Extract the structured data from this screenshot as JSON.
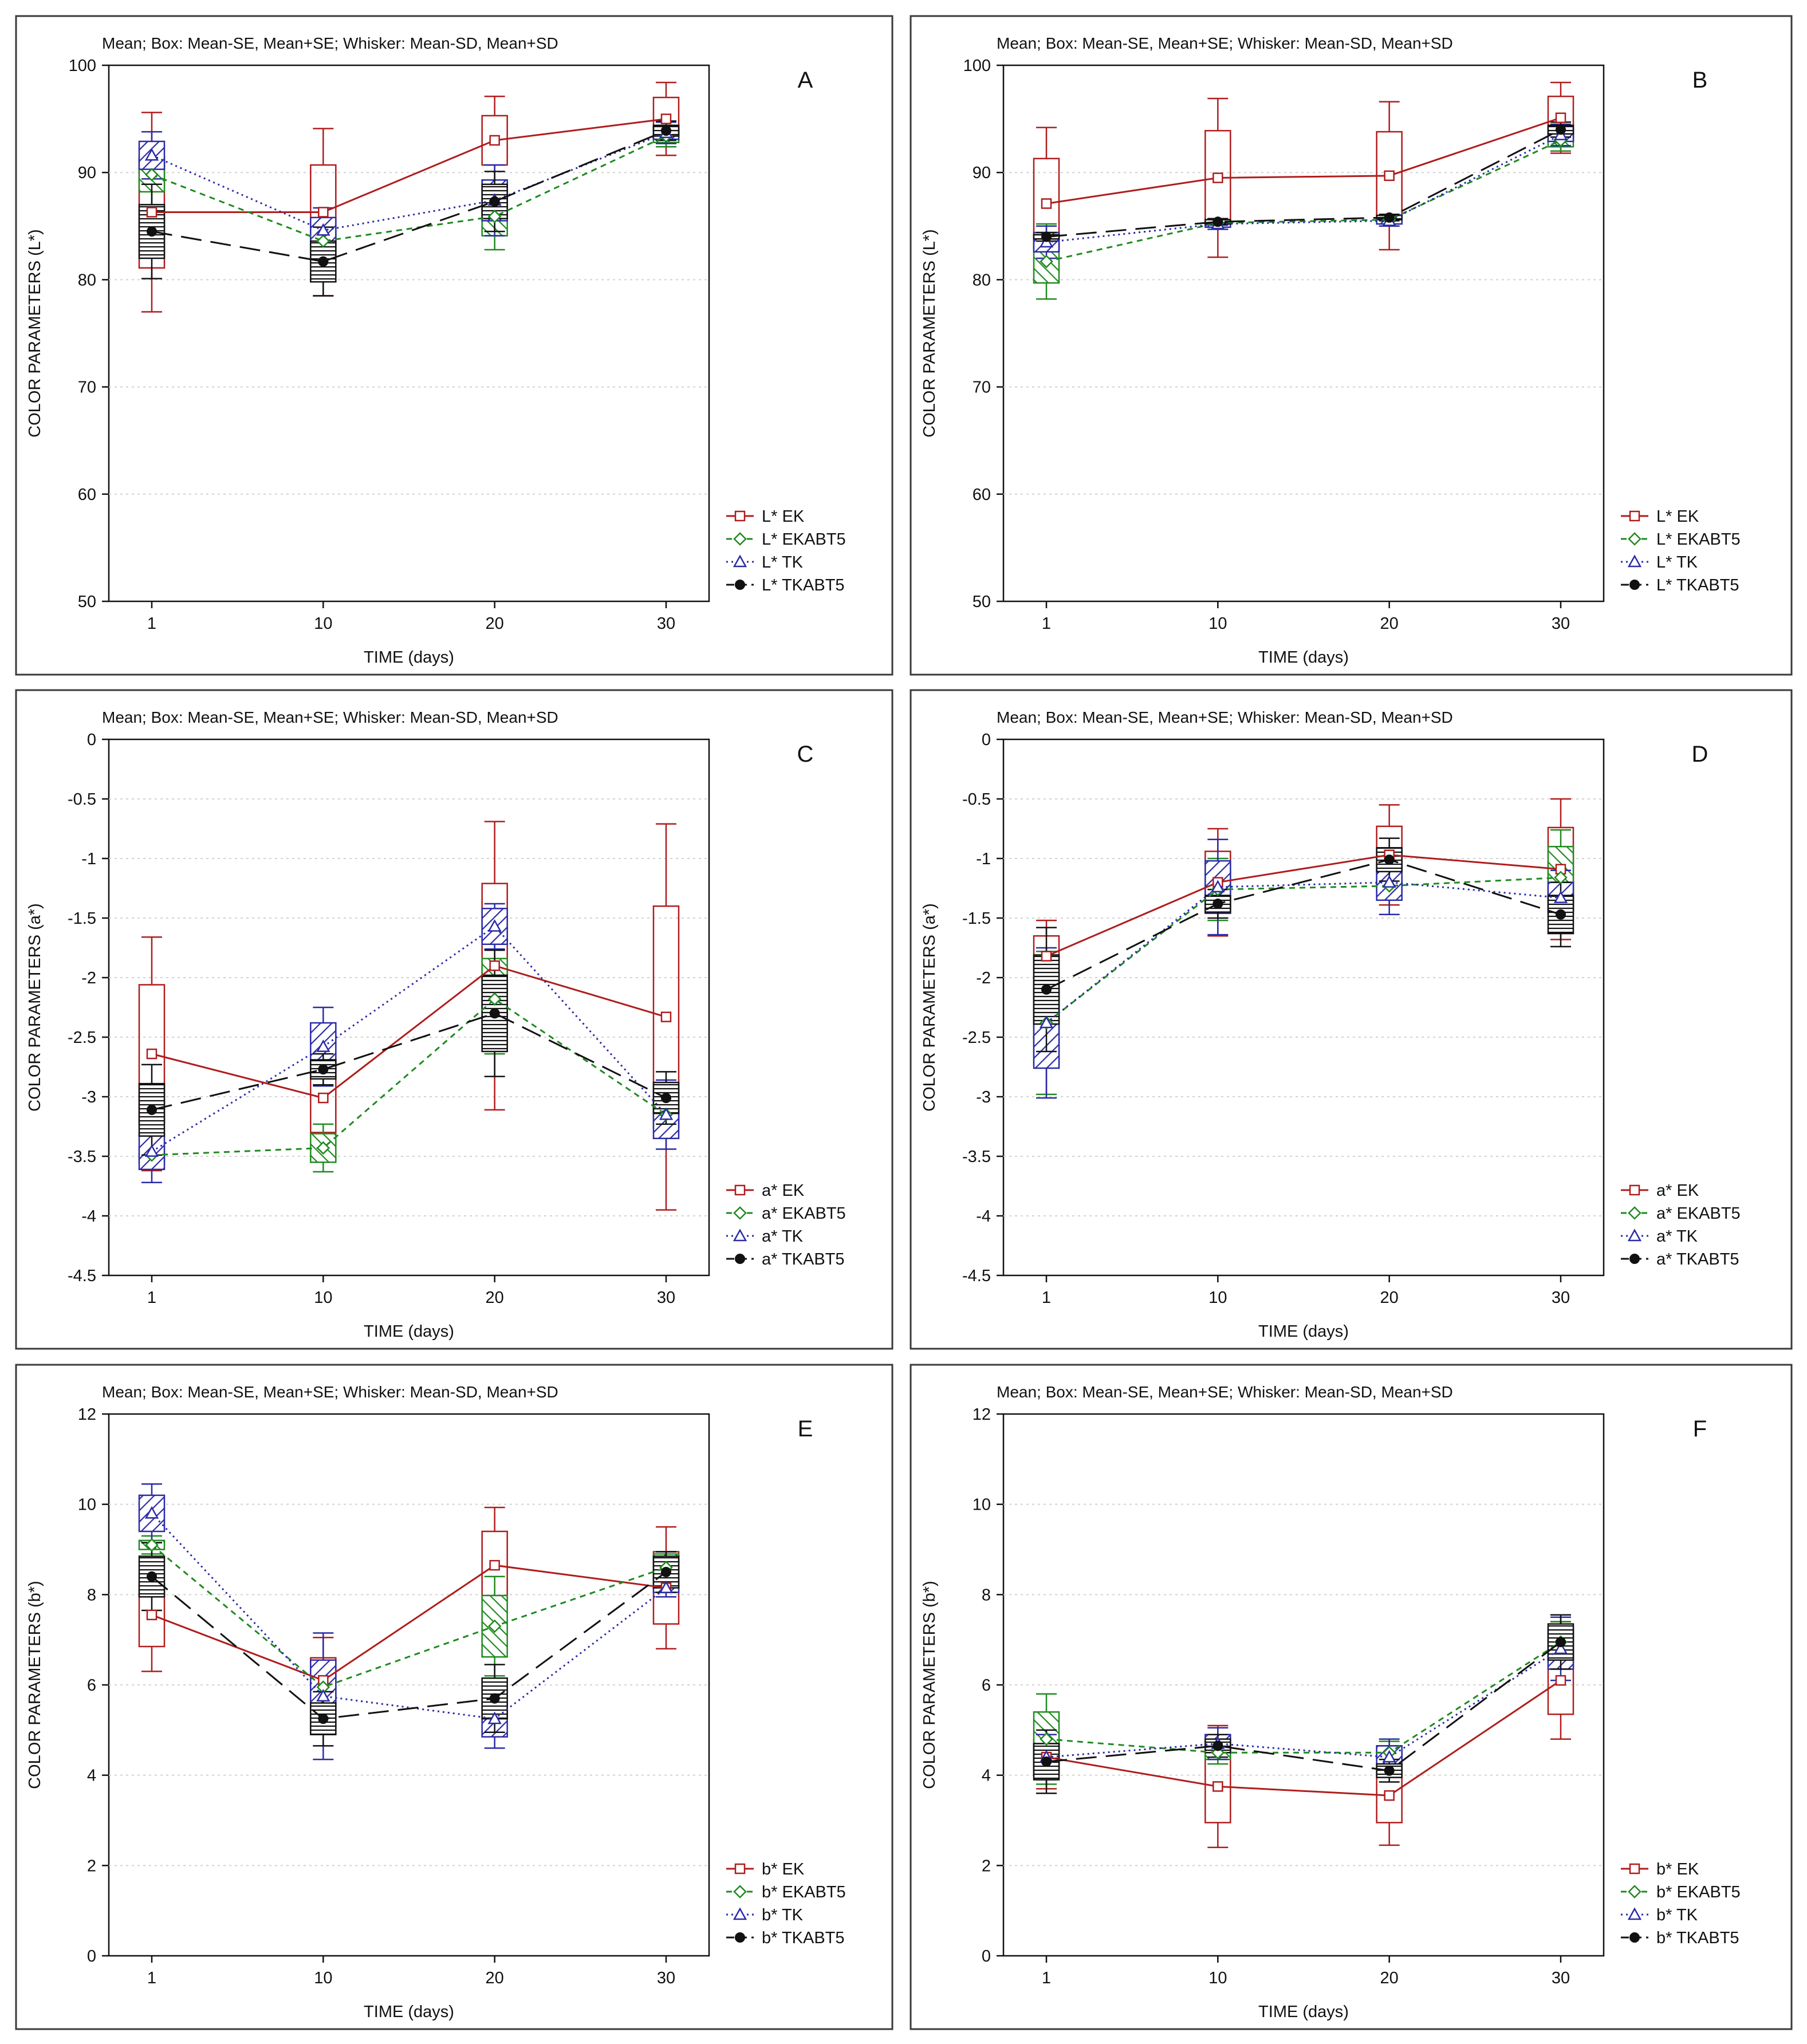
{
  "header": "Mean;  Box: Mean-SE, Mean+SE;  Whisker: Mean-SD, Mean+SD",
  "xlabel": "TIME (days)",
  "styles": {
    "EK": {
      "color": "#b01c1c",
      "dash": "",
      "marker": "square",
      "fill": "none"
    },
    "EKABT5": {
      "color": "#1f8a1f",
      "dash": "10 8",
      "marker": "diamond",
      "fill": "hatch-diag"
    },
    "TK": {
      "color": "#2a2aa8",
      "dash": "3 6",
      "marker": "triangle",
      "fill": "hatch-anti"
    },
    "TKABT5": {
      "color": "#111111",
      "dash": "36 16",
      "marker": "circle",
      "fill": "hatch-horiz"
    }
  },
  "chart_data": [
    {
      "id": "A",
      "type": "box",
      "title": "Mean;  Box: Mean-SE, Mean+SE;  Whisker: Mean-SD, Mean+SD",
      "letter": "A",
      "xlabel": "TIME (days)",
      "ylabel": "COLOR PARAMETERS (L*)",
      "ylim": [
        50,
        100
      ],
      "yticks": [
        "100",
        "90",
        "80",
        "70",
        "60",
        "50"
      ],
      "categories": [
        "1",
        "10",
        "20",
        "30"
      ],
      "series": [
        {
          "key": "EK",
          "name": "L* EK",
          "mean": [
            86.3,
            86.3,
            93.0,
            95.0
          ],
          "se": [
            5.2,
            4.4,
            2.3,
            2.0
          ],
          "sd": [
            9.3,
            7.8,
            4.1,
            3.4
          ]
        },
        {
          "key": "EKABT5",
          "name": "L* EKABT5",
          "mean": [
            89.8,
            83.6,
            85.9,
            93.4
          ],
          "se": [
            1.6,
            1.0,
            1.8,
            0.6
          ],
          "sd": [
            2.8,
            1.8,
            3.1,
            1.0
          ]
        },
        {
          "key": "TK",
          "name": "L* TK",
          "mean": [
            91.6,
            84.6,
            87.4,
            93.7
          ],
          "se": [
            1.3,
            1.2,
            1.9,
            0.6
          ],
          "sd": [
            2.2,
            2.1,
            3.3,
            1.0
          ]
        },
        {
          "key": "TKABT5",
          "name": "L* TKABT5",
          "mean": [
            84.5,
            81.7,
            87.3,
            93.9
          ],
          "se": [
            2.5,
            1.9,
            1.6,
            0.5
          ],
          "sd": [
            4.4,
            3.2,
            2.8,
            0.9
          ]
        }
      ]
    },
    {
      "id": "B",
      "type": "box",
      "title": "Mean;  Box: Mean-SE, Mean+SE;  Whisker: Mean-SD, Mean+SD",
      "letter": "B",
      "xlabel": "TIME (days)",
      "ylabel": "COLOR PARAMETERS (L*)",
      "ylim": [
        50,
        100
      ],
      "yticks": [
        "100",
        "90",
        "80",
        "70",
        "60",
        "50"
      ],
      "categories": [
        "1",
        "10",
        "20",
        "30"
      ],
      "series": [
        {
          "key": "EK",
          "name": "L* EK",
          "mean": [
            87.1,
            89.5,
            89.7,
            95.1
          ],
          "se": [
            4.2,
            4.4,
            4.1,
            2.0
          ],
          "sd": [
            7.1,
            7.4,
            6.9,
            3.3
          ]
        },
        {
          "key": "EKABT5",
          "name": "L* EKABT5",
          "mean": [
            81.7,
            85.3,
            85.6,
            93.0
          ],
          "se": [
            2.0,
            0.2,
            0.2,
            0.6
          ],
          "sd": [
            3.5,
            0.4,
            0.4,
            1.0
          ]
        },
        {
          "key": "TK",
          "name": "L* TK",
          "mean": [
            83.5,
            85.2,
            85.5,
            93.5
          ],
          "se": [
            0.9,
            0.3,
            0.3,
            0.6
          ],
          "sd": [
            1.5,
            0.5,
            0.5,
            1.0
          ]
        },
        {
          "key": "TKABT5",
          "name": "L* TKABT5",
          "mean": [
            84.0,
            85.4,
            85.8,
            94.0
          ],
          "se": [
            0.2,
            0.2,
            0.2,
            0.4
          ],
          "sd": [
            0.4,
            0.3,
            0.3,
            0.7
          ]
        }
      ]
    },
    {
      "id": "C",
      "type": "box",
      "title": "Mean;  Box: Mean-SE, Mean+SE;  Whisker: Mean-SD, Mean+SD",
      "letter": "C",
      "xlabel": "TIME (days)",
      "ylabel": "COLOR PARAMETERS (a*)",
      "ylim": [
        -4.5,
        0
      ],
      "yticks": [
        "0",
        "-0.5",
        "-1",
        "-1.5",
        "-2",
        "-2.5",
        "-3",
        "-3.5",
        "-4",
        "-4.5"
      ],
      "categories": [
        "1",
        "10",
        "20",
        "30"
      ],
      "series": [
        {
          "key": "EK",
          "name": "a* EK",
          "mean": [
            -2.64,
            -3.01,
            -1.9,
            -2.33
          ],
          "se": [
            0.58,
            0.29,
            0.69,
            0.93
          ],
          "sd": [
            0.98,
            0.44,
            1.21,
            1.62
          ]
        },
        {
          "key": "EKABT5",
          "name": "a* EKABT5",
          "mean": [
            -3.49,
            -3.43,
            -2.18,
            -3.15
          ],
          "se": [
            0.07,
            0.12,
            0.34,
            0.07
          ],
          "sd": [
            0.12,
            0.2,
            0.46,
            0.12
          ]
        },
        {
          "key": "TK",
          "name": "a* TK",
          "mean": [
            -3.46,
            -2.58,
            -1.57,
            -3.15
          ],
          "se": [
            0.15,
            0.2,
            0.15,
            0.2
          ],
          "sd": [
            0.26,
            0.33,
            0.19,
            0.29
          ]
        },
        {
          "key": "TKABT5",
          "name": "a* TKABT5",
          "mean": [
            -3.11,
            -2.77,
            -2.3,
            -3.01
          ],
          "se": [
            0.22,
            0.08,
            0.32,
            0.13
          ],
          "sd": [
            0.38,
            0.13,
            0.53,
            0.22
          ]
        }
      ]
    },
    {
      "id": "D",
      "type": "box",
      "title": "Mean;  Box: Mean-SE, Mean+SE;  Whisker: Mean-SD, Mean+SD",
      "letter": "D",
      "xlabel": "TIME (days)",
      "ylabel": "COLOR PARAMETERS (a*)",
      "ylim": [
        -4.5,
        0
      ],
      "yticks": [
        "0",
        "-0.5",
        "-1",
        "-1.5",
        "-2",
        "-2.5",
        "-3",
        "-3.5",
        "-4",
        "-4.5"
      ],
      "categories": [
        "1",
        "10",
        "20",
        "30"
      ],
      "series": [
        {
          "key": "EK",
          "name": "a* EK",
          "mean": [
            -1.82,
            -1.2,
            -0.97,
            -1.09
          ],
          "se": [
            0.17,
            0.26,
            0.24,
            0.35
          ],
          "sd": [
            0.3,
            0.45,
            0.42,
            0.59
          ]
        },
        {
          "key": "EKABT5",
          "name": "a* EKABT5",
          "mean": [
            -2.38,
            -1.26,
            -1.23,
            -1.16
          ],
          "se": [
            0.35,
            0.15,
            0.05,
            0.26
          ],
          "sd": [
            0.6,
            0.26,
            0.09,
            0.4
          ]
        },
        {
          "key": "TK",
          "name": "a* TK",
          "mean": [
            -2.38,
            -1.24,
            -1.2,
            -1.33
          ],
          "se": [
            0.38,
            0.22,
            0.15,
            0.13
          ],
          "sd": [
            0.63,
            0.4,
            0.27,
            0.23
          ]
        },
        {
          "key": "TKABT5",
          "name": "a* TKABT5",
          "mean": [
            -2.1,
            -1.38,
            -1.01,
            -1.47
          ],
          "se": [
            0.29,
            0.07,
            0.1,
            0.16
          ],
          "sd": [
            0.52,
            0.12,
            0.18,
            0.27
          ]
        }
      ]
    },
    {
      "id": "E",
      "type": "box",
      "title": "Mean;  Box: Mean-SE, Mean+SE;  Whisker: Mean-SD, Mean+SD",
      "letter": "E",
      "xlabel": "TIME (days)",
      "ylabel": "COLOR PARAMETERS (b*)",
      "ylim": [
        0,
        12
      ],
      "yticks": [
        "12",
        "10",
        "8",
        "6",
        "4",
        "2",
        "0"
      ],
      "categories": [
        "1",
        "10",
        "20",
        "30"
      ],
      "series": [
        {
          "key": "EK",
          "name": "b* EK",
          "mean": [
            7.55,
            6.1,
            8.65,
            8.15
          ],
          "se": [
            0.7,
            0.5,
            0.75,
            0.8
          ],
          "sd": [
            1.25,
            0.95,
            1.28,
            1.35
          ]
        },
        {
          "key": "EKABT5",
          "name": "b* EKABT5",
          "mean": [
            9.1,
            5.95,
            7.3,
            8.6
          ],
          "se": [
            0.1,
            0.25,
            0.68,
            0.3
          ],
          "sd": [
            0.2,
            0.35,
            1.1,
            0.35
          ]
        },
        {
          "key": "TK",
          "name": "b* TK",
          "mean": [
            9.8,
            5.75,
            5.25,
            8.15
          ],
          "se": [
            0.4,
            0.8,
            0.4,
            0.1
          ],
          "sd": [
            0.65,
            1.4,
            0.65,
            0.2
          ]
        },
        {
          "key": "TKABT5",
          "name": "b* TKABT5",
          "mean": [
            8.4,
            5.25,
            5.7,
            8.5
          ],
          "se": [
            0.45,
            0.35,
            0.45,
            0.35
          ],
          "sd": [
            0.75,
            0.6,
            0.75,
            0.45
          ]
        }
      ]
    },
    {
      "id": "F",
      "type": "box",
      "title": "Mean;  Box: Mean-SE, Mean+SE;  Whisker: Mean-SD, Mean+SD",
      "letter": "F",
      "xlabel": "TIME (days)",
      "ylabel": "COLOR PARAMETERS (b*)",
      "ylim": [
        0,
        12
      ],
      "yticks": [
        "12",
        "10",
        "8",
        "6",
        "4",
        "2",
        "0"
      ],
      "categories": [
        "1",
        "10",
        "20",
        "30"
      ],
      "series": [
        {
          "key": "EK",
          "name": "b* EK",
          "mean": [
            4.4,
            3.75,
            3.55,
            6.1
          ],
          "se": [
            0.4,
            0.8,
            0.6,
            0.75
          ],
          "sd": [
            0.7,
            1.35,
            1.1,
            1.3
          ]
        },
        {
          "key": "EKABT5",
          "name": "b* EKABT5",
          "mean": [
            4.8,
            4.5,
            4.5,
            6.95
          ],
          "se": [
            0.6,
            0.15,
            0.15,
            0.3
          ],
          "sd": [
            1.0,
            0.25,
            0.25,
            0.45
          ]
        },
        {
          "key": "TK",
          "name": "b* TK",
          "mean": [
            4.4,
            4.7,
            4.4,
            6.8
          ],
          "se": [
            0.3,
            0.2,
            0.25,
            0.45
          ],
          "sd": [
            0.5,
            0.35,
            0.4,
            0.7
          ]
        },
        {
          "key": "TKABT5",
          "name": "b* TKABT5",
          "mean": [
            4.3,
            4.65,
            4.1,
            6.95
          ],
          "se": [
            0.4,
            0.15,
            0.15,
            0.4
          ],
          "sd": [
            0.7,
            0.25,
            0.25,
            0.6
          ]
        }
      ]
    }
  ]
}
